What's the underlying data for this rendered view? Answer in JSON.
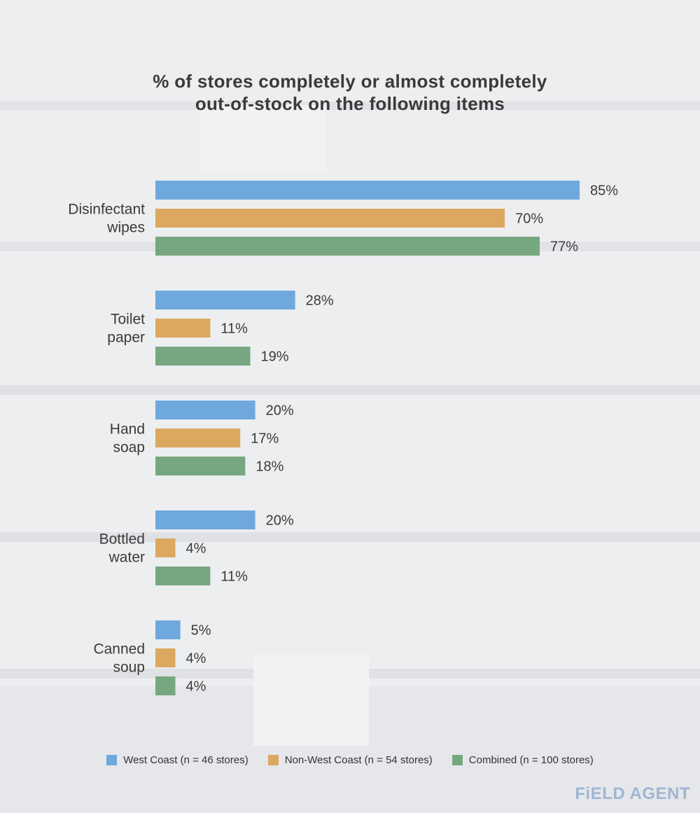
{
  "title_lines": [
    "% of stores completely or almost completely",
    "out-of-stock on the following items"
  ],
  "brand": "FiELD AGENT",
  "colors": {
    "West Coast": "#6fa8dc",
    "Non-West Coast": "#dca860",
    "Combined": "#77a780",
    "background": "#e9eaec",
    "text": "#3a3a3a"
  },
  "legend": [
    {
      "label": "West Coast (n = 46 stores)",
      "color": "#6fa8dc"
    },
    {
      "label": "Non-West Coast (n = 54 stores)",
      "color": "#dca860"
    },
    {
      "label": "Combined (n = 100 stores)",
      "color": "#77a780"
    }
  ],
  "chart_data": {
    "type": "bar",
    "orientation": "horizontal",
    "title": "% of stores completely or almost completely out-of-stock on the following items",
    "categories": [
      [
        "Disinfectant",
        "wipes"
      ],
      [
        "Toilet",
        "paper"
      ],
      [
        "Hand",
        "soap"
      ],
      [
        "Bottled",
        "water"
      ],
      [
        "Canned",
        "soup"
      ]
    ],
    "series": [
      {
        "name": "West Coast (n = 46 stores)",
        "color": "#6fa8dc",
        "values": [
          85,
          28,
          20,
          20,
          5
        ]
      },
      {
        "name": "Non-West Coast (n = 54 stores)",
        "color": "#dca860",
        "values": [
          70,
          11,
          17,
          4,
          4
        ]
      },
      {
        "name": "Combined (n = 100 stores)",
        "color": "#77a780",
        "values": [
          77,
          19,
          18,
          11,
          4
        ]
      }
    ],
    "value_suffix": "%",
    "xlim": [
      0,
      85
    ],
    "grid": false,
    "legend_position": "bottom"
  }
}
